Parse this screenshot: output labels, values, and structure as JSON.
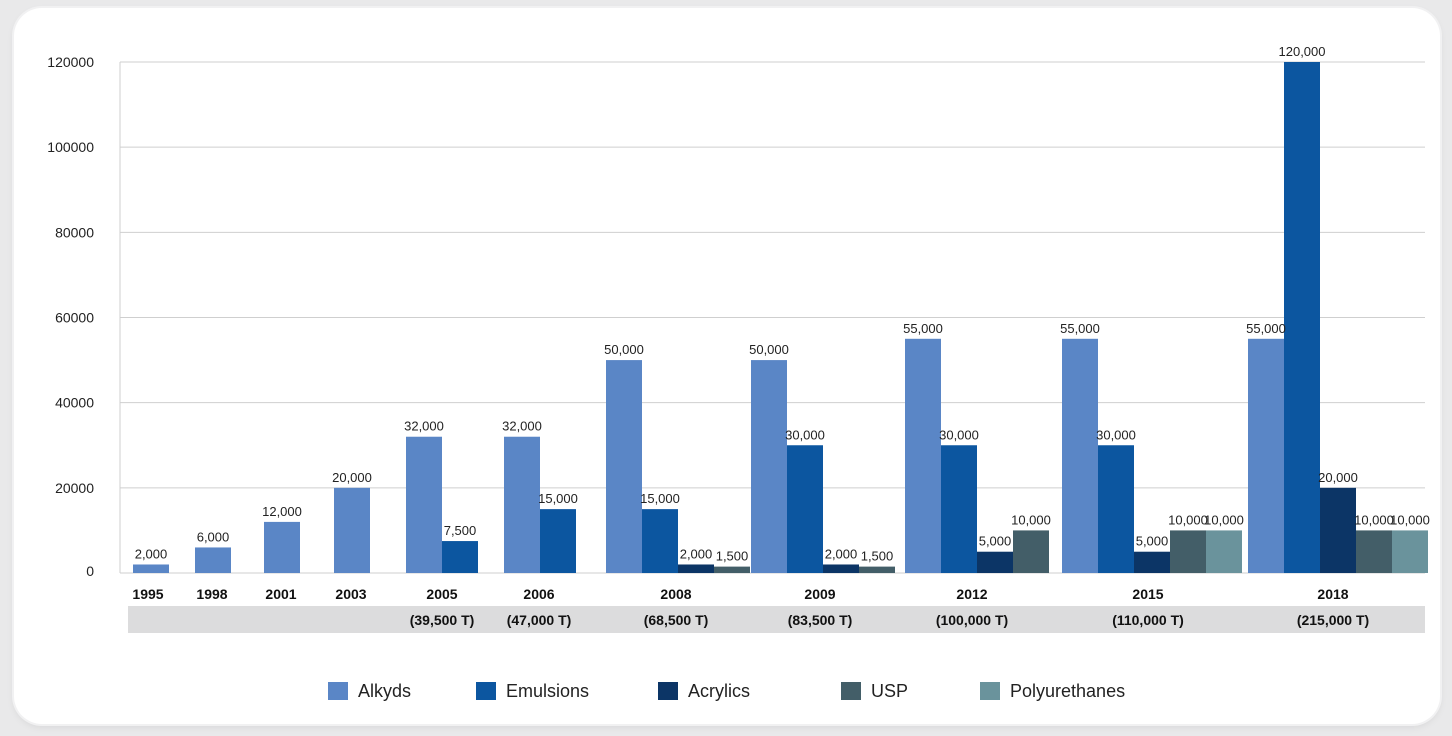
{
  "chart_data": {
    "type": "bar",
    "ylim": [
      0,
      120000
    ],
    "y_ticks": [
      "0",
      "20000",
      "40000",
      "60000",
      "80000",
      "100000",
      "120000"
    ],
    "grid": true,
    "legend_position": "bottom",
    "colors": {
      "Alkyds": "#5a86c6",
      "Emulsions": "#0c56a0",
      "Acrylics": "#0c3566",
      "USP": "#435e68",
      "Polyurethanes": "#6a939c"
    },
    "series_order": [
      "Alkyds",
      "Emulsions",
      "Acrylics",
      "USP",
      "Polyurethanes"
    ],
    "groups": [
      {
        "year": "1995",
        "total": "",
        "bars": [
          {
            "series": "Alkyds",
            "value": 2000,
            "label": "2,000"
          }
        ]
      },
      {
        "year": "1998",
        "total": "",
        "bars": [
          {
            "series": "Alkyds",
            "value": 6000,
            "label": "6,000"
          }
        ]
      },
      {
        "year": "2001",
        "total": "",
        "bars": [
          {
            "series": "Alkyds",
            "value": 12000,
            "label": "12,000"
          }
        ]
      },
      {
        "year": "2003",
        "total": "",
        "bars": [
          {
            "series": "Alkyds",
            "value": 20000,
            "label": "20,000"
          }
        ]
      },
      {
        "year": "2005",
        "total": "(39,500 T)",
        "bars": [
          {
            "series": "Alkyds",
            "value": 32000,
            "label": "32,000"
          },
          {
            "series": "Emulsions",
            "value": 7500,
            "label": "7,500"
          }
        ]
      },
      {
        "year": "2006",
        "total": "(47,000 T)",
        "bars": [
          {
            "series": "Alkyds",
            "value": 32000,
            "label": "32,000"
          },
          {
            "series": "Emulsions",
            "value": 15000,
            "label": "15,000"
          }
        ]
      },
      {
        "year": "2008",
        "total": "(68,500 T)",
        "bars": [
          {
            "series": "Alkyds",
            "value": 50000,
            "label": "50,000"
          },
          {
            "series": "Emulsions",
            "value": 15000,
            "label": "15,000"
          },
          {
            "series": "Acrylics",
            "value": 2000,
            "label": "2,000"
          },
          {
            "series": "USP",
            "value": 1500,
            "label": "1,500"
          }
        ]
      },
      {
        "year": "2009",
        "total": "(83,500 T)",
        "bars": [
          {
            "series": "Alkyds",
            "value": 50000,
            "label": "50,000"
          },
          {
            "series": "Emulsions",
            "value": 30000,
            "label": "30,000"
          },
          {
            "series": "Acrylics",
            "value": 2000,
            "label": "2,000"
          },
          {
            "series": "USP",
            "value": 1500,
            "label": "1,500"
          }
        ]
      },
      {
        "year": "2012",
        "total": "(100,000 T)",
        "bars": [
          {
            "series": "Alkyds",
            "value": 55000,
            "label": "55,000"
          },
          {
            "series": "Emulsions",
            "value": 30000,
            "label": "30,000"
          },
          {
            "series": "Acrylics",
            "value": 5000,
            "label": "5,000"
          },
          {
            "series": "USP",
            "value": 10000,
            "label": "10,000"
          }
        ]
      },
      {
        "year": "2015",
        "total": "(110,000 T)",
        "bars": [
          {
            "series": "Alkyds",
            "value": 55000,
            "label": "55,000"
          },
          {
            "series": "Emulsions",
            "value": 30000,
            "label": "30,000"
          },
          {
            "series": "Acrylics",
            "value": 5000,
            "label": "5,000"
          },
          {
            "series": "USP",
            "value": 10000,
            "label": "10,000"
          },
          {
            "series": "Polyurethanes",
            "value": 10000,
            "label": "10,000"
          }
        ]
      },
      {
        "year": "2018",
        "total": "(215,000 T)",
        "bars": [
          {
            "series": "Alkyds",
            "value": 55000,
            "label": "55,000"
          },
          {
            "series": "Emulsions",
            "value": 120000,
            "label": "120,000"
          },
          {
            "series": "Acrylics",
            "value": 20000,
            "label": "20,000"
          },
          {
            "series": "USP",
            "value": 10000,
            "label": "10,000"
          },
          {
            "series": "Polyurethanes",
            "value": 10000,
            "label": "10,000"
          }
        ]
      }
    ]
  }
}
